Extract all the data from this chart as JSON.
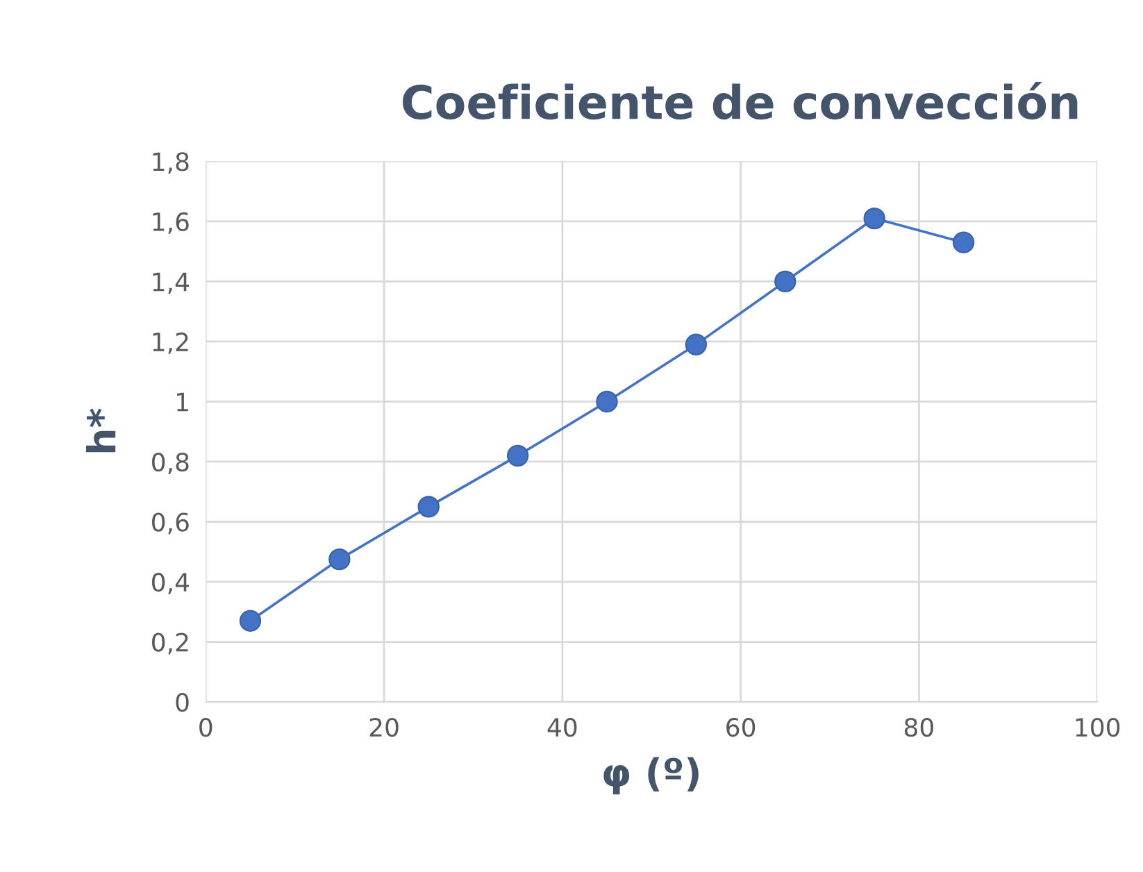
{
  "chart_data": {
    "type": "line",
    "title": "Coeficiente de convección",
    "xlabel": "φ (º)",
    "ylabel": "h*",
    "x": [
      5,
      15,
      25,
      35,
      45,
      55,
      65,
      75,
      85
    ],
    "series": [
      {
        "color": "#4472c4",
        "values": [
          0.27,
          0.475,
          0.65,
          0.82,
          1.0,
          1.19,
          1.4,
          1.61,
          1.53
        ]
      }
    ],
    "xlim": [
      0,
      100
    ],
    "xticks": [
      0,
      20,
      40,
      60,
      80,
      100
    ],
    "ylim": [
      0,
      1.8
    ],
    "yticks": [
      {
        "value": 0,
        "label": "0"
      },
      {
        "value": 0.2,
        "label": "0,2"
      },
      {
        "value": 0.4,
        "label": "0,4"
      },
      {
        "value": 0.6,
        "label": "0,6"
      },
      {
        "value": 0.8,
        "label": "0,8"
      },
      {
        "value": 1,
        "label": "1"
      },
      {
        "value": 1.2,
        "label": "1,2"
      },
      {
        "value": 1.4,
        "label": "1,4"
      },
      {
        "value": 1.6,
        "label": "1,6"
      },
      {
        "value": 1.8,
        "label": "1,8"
      }
    ],
    "grid": true,
    "marker": "circle",
    "line_style": "solid",
    "legend": false
  }
}
